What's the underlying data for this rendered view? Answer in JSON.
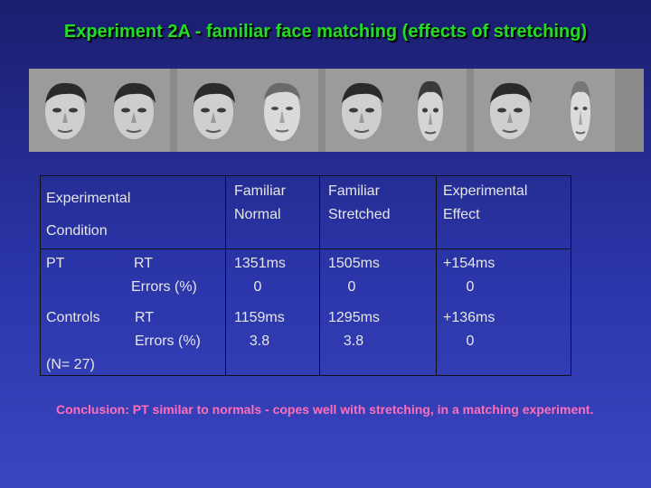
{
  "slide": {
    "title": "Experiment  2A - familiar face matching (effects of stretching)",
    "conclusion": "Conclusion: PT similar to normals - copes well with stretching, in a matching experiment."
  },
  "faces": [
    "face-normal-1",
    "face-normal-2",
    "face-normal-3",
    "face-stretched-1",
    "face-normal-4",
    "face-stretched-2",
    "face-normal-5",
    "face-stretched-3"
  ],
  "table": {
    "header": {
      "condition_line1": "Experimental",
      "condition_line2": "Condition",
      "col1_line1": "Familiar",
      "col1_line2": "Normal",
      "col2_line1": "Familiar",
      "col2_line2": "Stretched",
      "col3_line1": "Experimental",
      "col3_line2": "Effect"
    },
    "rows": [
      {
        "group": "PT",
        "measure1": "RT",
        "measure2": "Errors (%)",
        "normal_rt": "1351ms",
        "normal_err": "0",
        "stretched_rt": "1505ms",
        "stretched_err": "0",
        "effect_rt": "+154ms",
        "effect_err": "0"
      },
      {
        "group": "Controls",
        "measure1": "RT",
        "measure2": "Errors (%)",
        "normal_rt": "1159ms",
        "normal_err": "3.8",
        "stretched_rt": "1295ms",
        "stretched_err": "3.8",
        "effect_rt": "+136ms",
        "effect_err": "0",
        "note": "(N= 27)"
      }
    ]
  },
  "colors": {
    "title": "#22dd22",
    "conclusion": "#ff6fb8",
    "text": "#e6e6e6"
  }
}
